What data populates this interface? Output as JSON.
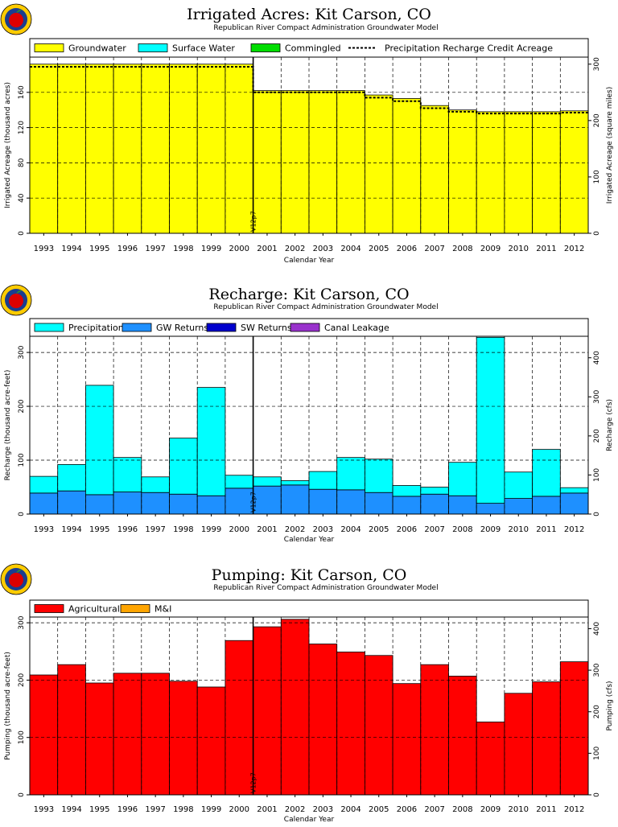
{
  "chart_data": [
    {
      "type": "bar",
      "stacked": true,
      "title": "Irrigated Acres: Kit Carson, CO",
      "subtitle": "Republican River Compact Administration Groundwater Model",
      "xlabel": "Calendar Year",
      "ylabel": "Irrigated Acreage (thousand acres)",
      "ylabel_right": "Irrigated Acreage (square miles)",
      "categories": [
        "1993",
        "1994",
        "1995",
        "1996",
        "1997",
        "1998",
        "1999",
        "2000",
        "2001",
        "2002",
        "2003",
        "2004",
        "2005",
        "2006",
        "2007",
        "2008",
        "2009",
        "2010",
        "2011",
        "2012"
      ],
      "ylim": [
        0,
        200
      ],
      "yticks": [
        0,
        40,
        80,
        120,
        160
      ],
      "yticks_right": [
        0,
        100,
        200,
        300
      ],
      "ylim_right": [
        0,
        312.5
      ],
      "grid": true,
      "legend_position": "top",
      "series": [
        {
          "name": "Groundwater",
          "color": "#ffff00",
          "values": [
            192,
            192,
            192,
            192,
            192,
            192,
            192,
            192,
            162,
            162,
            162,
            162,
            157,
            153,
            145,
            140,
            138,
            138,
            138,
            139
          ]
        },
        {
          "name": "Surface Water",
          "color": "#00ffff",
          "values": [
            0,
            0,
            0,
            0,
            0,
            0,
            0,
            0,
            0,
            0,
            0,
            0,
            0,
            0,
            0,
            0,
            0,
            0,
            0,
            0
          ]
        },
        {
          "name": "Commingled",
          "color": "#00dd00",
          "values": [
            0,
            0,
            0,
            0,
            0,
            0,
            0,
            0,
            0,
            0,
            0,
            0,
            0,
            0,
            0,
            0,
            0,
            0,
            0,
            0
          ]
        }
      ],
      "line_series": {
        "name": "Precipitation Recharge Credit Acreage",
        "values": [
          189,
          189,
          189,
          189,
          189,
          189,
          189,
          189,
          160,
          160,
          160,
          160,
          154,
          150,
          142,
          138,
          136,
          136,
          136,
          137
        ]
      },
      "marker": {
        "label": "V12p7",
        "position": "2000.5"
      }
    },
    {
      "type": "bar",
      "stacked": true,
      "title": "Recharge: Kit Carson, CO",
      "subtitle": "Republican River Compact Administration Groundwater Model",
      "xlabel": "Calendar Year",
      "ylabel": "Recharge (thousand acre-feet)",
      "ylabel_right": "Recharge (cfs)",
      "categories": [
        "1993",
        "1994",
        "1995",
        "1996",
        "1997",
        "1998",
        "1999",
        "2000",
        "2001",
        "2002",
        "2003",
        "2004",
        "2005",
        "2006",
        "2007",
        "2008",
        "2009",
        "2010",
        "2011",
        "2012"
      ],
      "ylim": [
        0,
        330
      ],
      "yticks": [
        0,
        100,
        200,
        300
      ],
      "yticks_right": [
        0,
        100,
        200,
        300,
        400
      ],
      "ylim_right": [
        0,
        455
      ],
      "grid": true,
      "legend_position": "top",
      "series": [
        {
          "name": "GW Returns",
          "color": "#1e90ff",
          "values": [
            39,
            43,
            36,
            41,
            40,
            37,
            34,
            48,
            52,
            54,
            46,
            45,
            40,
            33,
            37,
            34,
            20,
            29,
            33,
            39
          ]
        },
        {
          "name": "SW Returns",
          "color": "#0000cd",
          "values": [
            0,
            0,
            0,
            0,
            0,
            0,
            0,
            0,
            0,
            0,
            0,
            0,
            0,
            0,
            0,
            0,
            0,
            0,
            0,
            0
          ]
        },
        {
          "name": "Canal Leakage",
          "color": "#9932cc",
          "values": [
            0,
            0,
            0,
            0,
            0,
            0,
            0,
            0,
            0,
            0,
            0,
            0,
            0,
            0,
            0,
            0,
            0,
            0,
            0,
            0
          ]
        },
        {
          "name": "Precipitation",
          "color": "#00ffff",
          "values": [
            31,
            49,
            203,
            64,
            29,
            104,
            201,
            24,
            17,
            8,
            33,
            60,
            62,
            20,
            13,
            62,
            308,
            49,
            87,
            10
          ]
        }
      ],
      "legend_order": [
        "Precipitation",
        "GW Returns",
        "SW Returns",
        "Canal Leakage"
      ],
      "marker": {
        "label": "V12p7",
        "position": "2000.5"
      }
    },
    {
      "type": "bar",
      "stacked": true,
      "title": "Pumping: Kit Carson, CO",
      "subtitle": "Republican River Compact Administration Groundwater Model",
      "xlabel": "Calendar Year",
      "ylabel": "Pumping (thousand acre-feet)",
      "ylabel_right": "Pumping (cfs)",
      "categories": [
        "1993",
        "1994",
        "1995",
        "1996",
        "1997",
        "1998",
        "1999",
        "2000",
        "2001",
        "2002",
        "2003",
        "2004",
        "2005",
        "2006",
        "2007",
        "2008",
        "2009",
        "2010",
        "2011",
        "2012"
      ],
      "ylim": [
        0,
        310
      ],
      "yticks": [
        0,
        100,
        200,
        300
      ],
      "yticks_right": [
        0,
        100,
        200,
        300,
        400
      ],
      "ylim_right": [
        0,
        428
      ],
      "grid": true,
      "legend_position": "top",
      "series": [
        {
          "name": "Agricultural",
          "color": "#ff0000",
          "values": [
            209,
            227,
            195,
            212,
            212,
            198,
            188,
            269,
            293,
            306,
            263,
            249,
            243,
            194,
            227,
            207,
            127,
            177,
            197,
            232
          ]
        },
        {
          "name": "M&I",
          "color": "#ffa500",
          "values": [
            0,
            0,
            0,
            0,
            0,
            0,
            0,
            0,
            0,
            0,
            0,
            0,
            0,
            0,
            0,
            0,
            0,
            0,
            0,
            0
          ]
        }
      ],
      "marker": {
        "label": "V12p7",
        "position": "2000.5"
      }
    }
  ],
  "logo": {
    "icon": "apple-logo-icon",
    "colors": [
      "#ffcc00",
      "#1a3d8f",
      "#dd0000",
      "#2e8b2e"
    ]
  }
}
